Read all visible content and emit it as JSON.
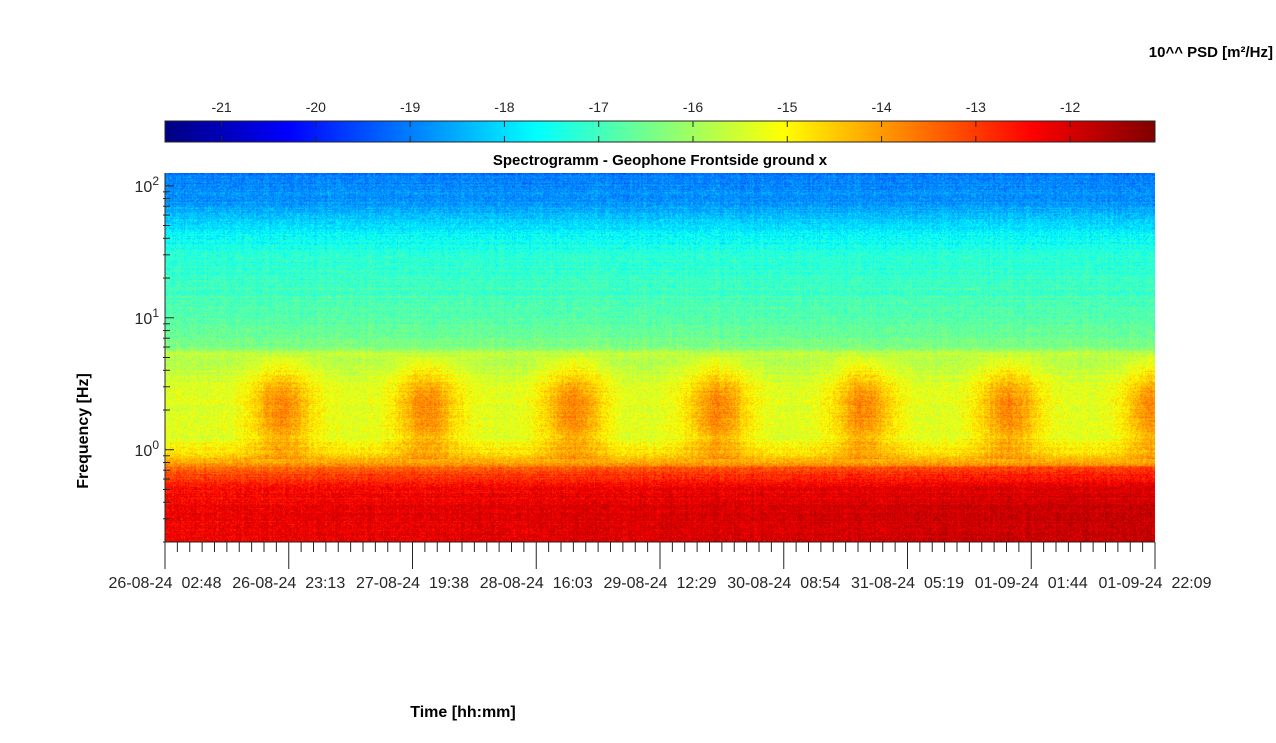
{
  "chart_data": {
    "type": "heatmap",
    "title": "Spectrogramm - Geophone Frontside ground x",
    "xlabel": "Time [hh:mm]",
    "ylabel": "Frequency [Hz]",
    "yscale": "log",
    "ylim": [
      0.2,
      125
    ],
    "y_ticks": [
      {
        "value": 1,
        "base": "10",
        "exp": "0"
      },
      {
        "value": 10,
        "base": "10",
        "exp": "1"
      },
      {
        "value": 100,
        "base": "10",
        "exp": "2"
      }
    ],
    "x_tick_labels": [
      "26-08-24  02:48",
      "26-08-24  23:13",
      "27-08-24  19:38",
      "28-08-24  16:03",
      "29-08-24  12:29",
      "30-08-24  08:54",
      "31-08-24  05:19",
      "01-09-24  01:44",
      "01-09-24  22:09"
    ],
    "colorbar": {
      "label": "10^^ PSD [m²/Hz]",
      "colormap": "jet",
      "range": [
        -21.6,
        -11.1
      ],
      "ticks": [
        -21,
        -20,
        -19,
        -18,
        -17,
        -16,
        -15,
        -14,
        -13,
        -12
      ],
      "tick_labels": [
        "-21",
        "-20",
        "-19",
        "-18",
        "-17",
        "-16",
        "-15",
        "-14",
        "-13",
        "-12"
      ]
    },
    "psd_profile": {
      "description_of_values": "log10 PSD vs frequency",
      "frequency_hz": [
        0.2,
        0.3,
        0.5,
        0.7,
        0.9,
        1.2,
        2,
        3,
        4.5,
        5.3,
        6,
        8,
        10,
        15,
        20,
        30,
        40,
        60,
        80,
        125
      ],
      "log10_psd": [
        -12.3,
        -12.3,
        -12.5,
        -13.4,
        -14.6,
        -15.3,
        -15.4,
        -15.4,
        -15.8,
        -15.6,
        -16.3,
        -16.6,
        -16.8,
        -17.0,
        -17.1,
        -17.3,
        -17.6,
        -18.4,
        -18.8,
        -19.0
      ]
    },
    "daily_activity": {
      "description_of_values": "daytime energy maxima in the 0.9-5 Hz band (day index from first tick)",
      "peaks_days": [
        0.8,
        1.8,
        2.8,
        3.8,
        4.8,
        5.8,
        6.8
      ]
    },
    "colors": {
      "axis": "#262626",
      "colormap_stops": [
        "#00008f",
        "#0000ff",
        "#00ffff",
        "#80ff80",
        "#ffff00",
        "#ff0000",
        "#800000"
      ]
    }
  }
}
